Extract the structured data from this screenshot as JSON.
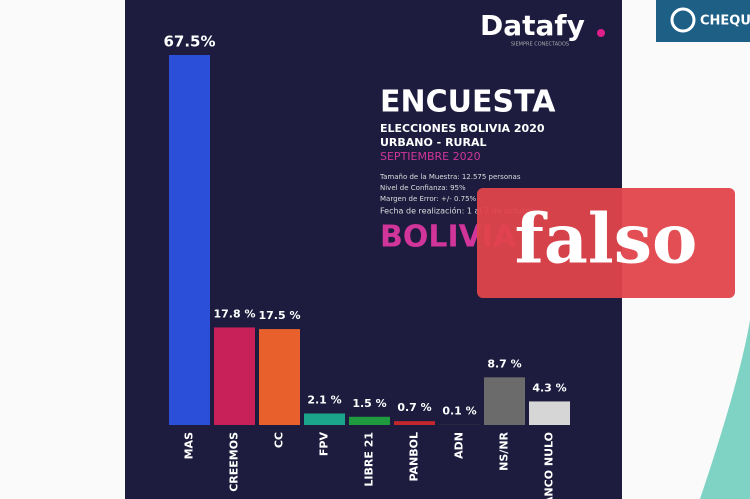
{
  "chart_data": {
    "type": "bar",
    "categories": [
      "MAS",
      "CREEMOS",
      "CC",
      "FPV",
      "LIBRE 21",
      "PANBOL",
      "ADN",
      "NS/NR",
      "BLANCO NULO"
    ],
    "series": [
      {
        "values": [
          67.5,
          17.8,
          17.5,
          2.1,
          1.5,
          0.7,
          0.1,
          8.7,
          4.3
        ],
        "value_labels": [
          "67.5%",
          "17.8 %",
          "17.5 %",
          "2.1 %",
          "1.5 %",
          "0.7 %",
          "0.1 %",
          "8.7 %",
          "4.3 %"
        ],
        "colors": [
          "#2b4fd8",
          "#c8215a",
          "#e8612c",
          "#1ba58b",
          "#1f9a3f",
          "#c3262b",
          "#2e2e3a",
          "#6b6b6b",
          "#d6d6d6"
        ]
      }
    ]
  },
  "header": {
    "brand": "Datafy",
    "tagline": "SIEMPRE CONECTADOS",
    "title": "ENCUESTA",
    "subtitle": "ELECCIONES BOLIVIA 2020",
    "scope": "URBANO - RURAL",
    "date": "SEPTIEMBRE 2020",
    "notes": [
      "Tamaño de la Muestra: 12.575 personas",
      "Nivel de Confianza: 95%",
      "Margen de Error: +/- 0.75%",
      "Fecha de realización: 1 al 7 de octubre"
    ],
    "country": "BOLIVIA"
  },
  "overlay": {
    "stamp": "falso",
    "badge": "CHEQU"
  }
}
